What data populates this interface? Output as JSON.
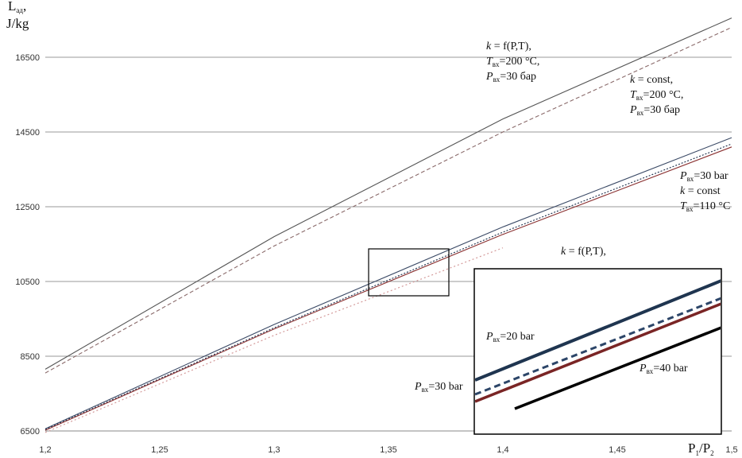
{
  "chart_data": {
    "type": "line",
    "ylabel_line1": "L",
    "ylabel_sub": "ад",
    "ylabel_comma": ",",
    "ylabel_line2": "J/kg",
    "xlabel_main": "P",
    "xlabel_sub1": "1",
    "xlabel_slash": "/P",
    "xlabel_sub2": "2",
    "xlim": [
      1.2,
      1.5
    ],
    "ylim": [
      6500,
      17500
    ],
    "x_ticks": [
      "1,2",
      "1,25",
      "1,3",
      "1,35",
      "1,4",
      "1,45",
      "1,5"
    ],
    "y_ticks": [
      "6500",
      "8500",
      "10500",
      "12500",
      "14500",
      "16500"
    ],
    "grid": true,
    "series": [
      {
        "name": "",
        "color": "#555555",
        "dash": "none",
        "width": 1.1,
        "x": [
          1.2,
          1.3,
          1.4,
          1.5
        ],
        "y": [
          8150,
          11700,
          14850,
          17550
        ]
      },
      {
        "name": "",
        "color": "#8a6a6a",
        "dash": "5,3",
        "width": 1.1,
        "x": [
          1.2,
          1.3,
          1.4,
          1.5
        ],
        "y": [
          8050,
          11450,
          14500,
          17300
        ]
      },
      {
        "name": "",
        "color": "#3b4a66",
        "dash": "none",
        "width": 1.1,
        "x": [
          1.2,
          1.3,
          1.4,
          1.5
        ],
        "y": [
          6560,
          9350,
          11960,
          14350
        ]
      },
      {
        "name": "",
        "color": "#1a2d4a",
        "dash": "2,2",
        "width": 1.1,
        "x": [
          1.2,
          1.3,
          1.4,
          1.5
        ],
        "y": [
          6540,
          9260,
          11820,
          14180
        ]
      },
      {
        "name": "",
        "color": "#8a3030",
        "dash": "none",
        "width": 1.1,
        "x": [
          1.2,
          1.3,
          1.4,
          1.5
        ],
        "y": [
          6520,
          9230,
          11760,
          14100
        ]
      },
      {
        "name": "",
        "color": "#d49a9a",
        "dash": "2,3",
        "width": 1.2,
        "x": [
          1.2,
          1.3,
          1.4
        ],
        "y": [
          6460,
          9060,
          11400
        ]
      }
    ],
    "inset_series": [
      {
        "color": "#1f3550",
        "dash": "none",
        "width": 4,
        "y_left": 478,
        "y_right": 353
      },
      {
        "color": "#2c4568",
        "dash": "8,5",
        "width": 3,
        "y_left": 496,
        "y_right": 375
      },
      {
        "color": "#7a2525",
        "dash": "none",
        "width": 3.5,
        "y_left": 505,
        "y_right": 382
      },
      {
        "color": "#000000",
        "dash": "none",
        "width": 3.5,
        "y_left": 550,
        "y_right": 412
      }
    ],
    "annotations": {
      "a1": {
        "l1_k": "k",
        "l1_rest": " = f(P,T),",
        "l2_T": "T",
        "l2_sub": "вх",
        "l2_rest": "=200 °C,",
        "l3_P": "P",
        "l3_sub": "вх",
        "l3_rest": "=30 бар"
      },
      "a2": {
        "l1_k": "k",
        "l1_rest": " = const,",
        "l2_T": "T",
        "l2_sub": "вх",
        "l2_rest": "=200 °C,",
        "l3_P": "P",
        "l3_sub": "вх",
        "l3_rest": "=30 бар"
      },
      "a3": {
        "l1_P": "P",
        "l1_sub": "вх",
        "l1_rest": "=30 bar",
        "l2_k": "k",
        "l2_rest": " = const",
        "l3_T": "T",
        "l3_sub": "вх",
        "l3_rest": "=110 °C"
      },
      "inset_title": {
        "k": "k",
        "rest": " = f(P,T),",
        "full": "k = f(P,T),"
      },
      "inset_p20": {
        "P": "P",
        "sub": "вх",
        "rest": "=20 bar"
      },
      "inset_p40": {
        "P": "P",
        "sub": "вх",
        "rest": "=40 bar"
      },
      "left_p30": {
        "P": "P",
        "sub": "вх",
        "rest": "=30 bar"
      }
    }
  }
}
